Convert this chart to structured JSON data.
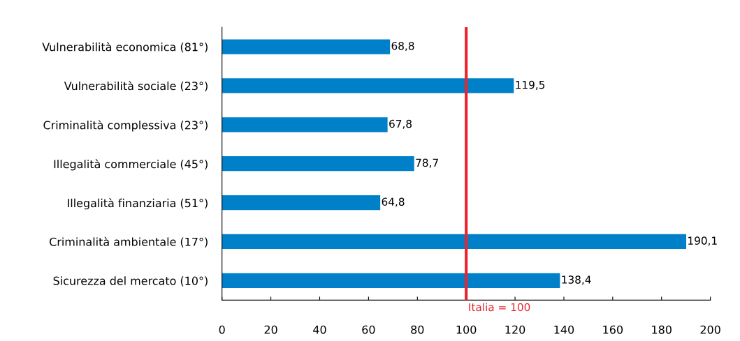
{
  "chart_data": {
    "type": "bar",
    "orientation": "horizontal",
    "categories": [
      "Vulnerabilità economica (81°)",
      "Vulnerabilità sociale (23°)",
      "Criminalità complessiva (23°)",
      "Illegalità commerciale (45°)",
      "Illegalità finanziaria (51°)",
      "Criminalità ambientale (17°)",
      "Sicurezza del mercato (10°)"
    ],
    "values": [
      68.8,
      119.5,
      67.8,
      78.7,
      64.8,
      190.1,
      138.4
    ],
    "value_labels": [
      "68,8",
      "119,5",
      "67,8",
      "78,7",
      "64,8",
      "190,1",
      "138,4"
    ],
    "color": "#0080c8",
    "xlim": [
      0,
      200
    ],
    "xticks": [
      0,
      20,
      40,
      60,
      80,
      100,
      120,
      140,
      160,
      180,
      200
    ],
    "ref_lines": [
      {
        "axis": "x",
        "value": 100,
        "label": "Italia = 100",
        "color": "#e8252f"
      }
    ],
    "grid": false,
    "legend": false
  }
}
